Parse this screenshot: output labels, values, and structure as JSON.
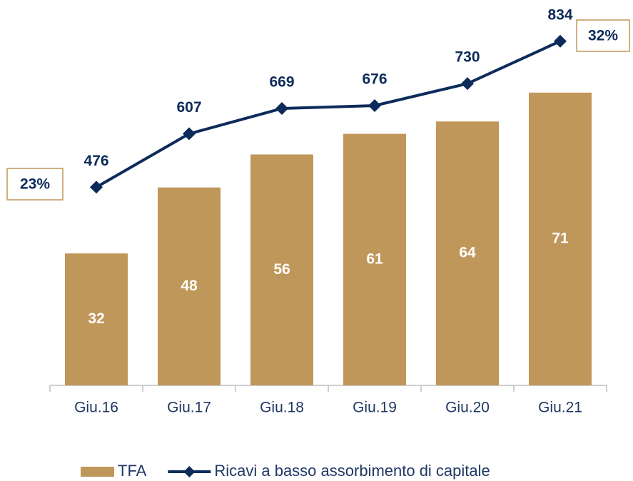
{
  "chart_data": {
    "type": "bar-line",
    "categories": [
      "Giu.16",
      "Giu.17",
      "Giu.18",
      "Giu.19",
      "Giu.20",
      "Giu.21"
    ],
    "series": [
      {
        "name": "TFA",
        "type": "bar",
        "color": "#c0975a",
        "values": [
          32,
          48,
          56,
          61,
          64,
          71
        ]
      },
      {
        "name": "Ricavi a basso assorbimento di capitale",
        "type": "line",
        "axis": "y2",
        "color": "#0d2b5a",
        "values": [
          476,
          607,
          669,
          676,
          730,
          834
        ]
      }
    ],
    "ylim": [
      0,
      90
    ],
    "y2lim": [
      -10,
      900
    ],
    "annotations": [
      "23%",
      "32%"
    ],
    "legend": "bottom"
  }
}
